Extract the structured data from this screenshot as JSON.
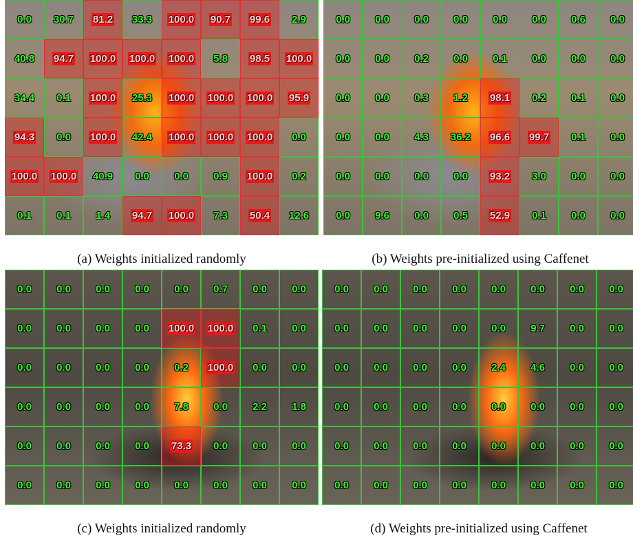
{
  "panels": [
    {
      "caption": "(a) Weights initialized randomly",
      "cells": [
        [
          "0.0",
          "30.7",
          "81.2",
          "33.3",
          "100.0",
          "90.7",
          "99.6",
          "2.9"
        ],
        [
          "40.8",
          "94.7",
          "100.0",
          "100.0",
          "100.0",
          "5.8",
          "98.5",
          "100.0"
        ],
        [
          "34.4",
          "0.1",
          "100.0",
          "25.3",
          "100.0",
          "100.0",
          "100.0",
          "95.9"
        ],
        [
          "94.3",
          "0.0",
          "100.0",
          "42.4",
          "100.0",
          "100.0",
          "100.0",
          "0.0"
        ],
        [
          "100.0",
          "100.0",
          "40.9",
          "0.0",
          "0.0",
          "0.9",
          "100.0",
          "0.2"
        ],
        [
          "0.1",
          "0.1",
          "1.4",
          "94.7",
          "100.0",
          "7.3",
          "50.4",
          "12.6"
        ]
      ]
    },
    {
      "caption": "(b) Weights pre-initialized using Caffenet",
      "cells": [
        [
          "0.0",
          "0.0",
          "0.0",
          "0.0",
          "0.0",
          "0.0",
          "0.6",
          "0.0"
        ],
        [
          "0.0",
          "0.0",
          "0.2",
          "0.0",
          "0.1",
          "0.0",
          "0.0",
          "0.0"
        ],
        [
          "0.0",
          "0.0",
          "0.3",
          "1.2",
          "98.1",
          "0.2",
          "0.1",
          "0.0"
        ],
        [
          "0.0",
          "0.0",
          "4.3",
          "36.2",
          "96.6",
          "99.7",
          "0.1",
          "0.0"
        ],
        [
          "0.0",
          "0.0",
          "0.0",
          "0.0",
          "93.2",
          "3.0",
          "0.0",
          "0.0"
        ],
        [
          "0.0",
          "9.6",
          "0.0",
          "0.5",
          "52.9",
          "0.1",
          "0.0",
          "0.0"
        ]
      ]
    },
    {
      "caption": "(c) Weights initialized randomly",
      "cells": [
        [
          "0.0",
          "0.0",
          "0.0",
          "0.0",
          "0.0",
          "0.7",
          "0.0",
          "0.0"
        ],
        [
          "0.0",
          "0.0",
          "0.0",
          "0.0",
          "100.0",
          "100.0",
          "0.1",
          "0.0"
        ],
        [
          "0.0",
          "0.0",
          "0.0",
          "0.0",
          "0.2",
          "100.0",
          "0.0",
          "0.0"
        ],
        [
          "0.0",
          "0.0",
          "0.0",
          "0.0",
          "7.8",
          "0.0",
          "2.2",
          "1.8"
        ],
        [
          "0.0",
          "0.0",
          "0.0",
          "0.0",
          "73.3",
          "0.0",
          "0.0",
          "0.0"
        ],
        [
          "0.0",
          "0.0",
          "0.0",
          "0.0",
          "0.0",
          "0.0",
          "0.0",
          "0.0"
        ]
      ]
    },
    {
      "caption": "(d) Weights pre-initialized using Caffenet",
      "cells": [
        [
          "0.0",
          "0.0",
          "0.0",
          "0.0",
          "0.0",
          "0.0",
          "0.0",
          "0.0"
        ],
        [
          "0.0",
          "0.0",
          "0.0",
          "0.0",
          "0.0",
          "9.7",
          "0.0",
          "0.0"
        ],
        [
          "0.0",
          "0.0",
          "0.0",
          "0.0",
          "2.4",
          "4.6",
          "0.0",
          "0.0"
        ],
        [
          "0.0",
          "0.0",
          "0.0",
          "0.0",
          "0.0",
          "0.0",
          "0.0",
          "0.0"
        ],
        [
          "0.0",
          "0.0",
          "0.0",
          "0.0",
          "0.0",
          "0.0",
          "0.0",
          "0.0"
        ],
        [
          "0.0",
          "0.0",
          "0.0",
          "0.0",
          "0.0",
          "0.0",
          "0.0",
          "0.0"
        ]
      ]
    }
  ]
}
